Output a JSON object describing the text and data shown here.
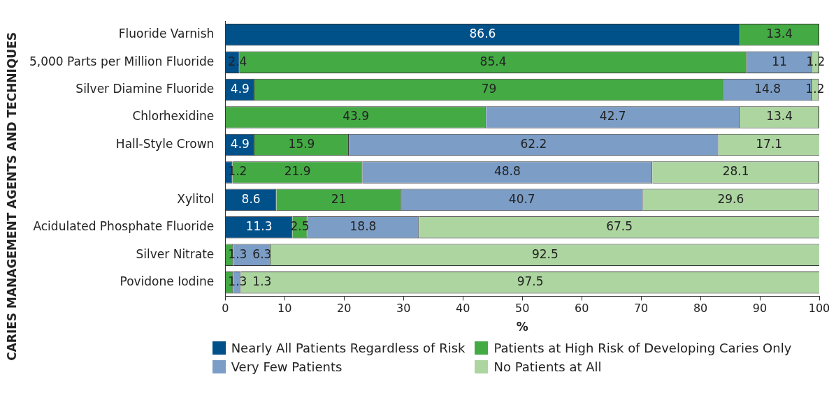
{
  "chart_data": {
    "type": "bar",
    "orientation": "horizontal",
    "stacked": true,
    "categories": [
      "Fluoride Varnish",
      "5,000 Parts per Million Fluoride",
      "Silver Diamine Fluoride",
      "Chlorhexidine",
      "Hall-Style Crown",
      null,
      "Xylitol",
      "Acidulated Phosphate Fluoride",
      "Silver Nitrate",
      "Povidone Iodine"
    ],
    "series": [
      {
        "name": "Nearly All Patients Regardless of Risk",
        "color": "#00508a",
        "values": [
          86.6,
          2.4,
          4.9,
          null,
          4.9,
          1.2,
          8.6,
          11.3,
          null,
          null
        ]
      },
      {
        "name": "Patients at High Risk of Developing Caries Only",
        "color": "#44aa44",
        "values": [
          13.4,
          85.4,
          79,
          43.9,
          15.9,
          21.9,
          21,
          2.5,
          1.3,
          1.3
        ]
      },
      {
        "name": "Very Few Patients",
        "color": "#7b9dc6",
        "values": [
          null,
          11,
          14.8,
          42.7,
          62.2,
          48.8,
          40.7,
          18.8,
          6.3,
          1.3
        ]
      },
      {
        "name": "No Patients at All",
        "color": "#acd5a0",
        "values": [
          null,
          1.2,
          1.2,
          13.4,
          17.1,
          28.1,
          29.6,
          67.5,
          92.5,
          97.5
        ]
      }
    ],
    "xlim": [
      0,
      100
    ],
    "xticks": [
      0,
      10,
      20,
      30,
      40,
      50,
      60,
      70,
      80,
      90,
      100
    ],
    "xlabel": "%",
    "ylabel": "CARIES MANAGEMENT AGENTS AND TECHNIQUES",
    "data_labels": true,
    "grid": false,
    "legend": "bottom"
  }
}
